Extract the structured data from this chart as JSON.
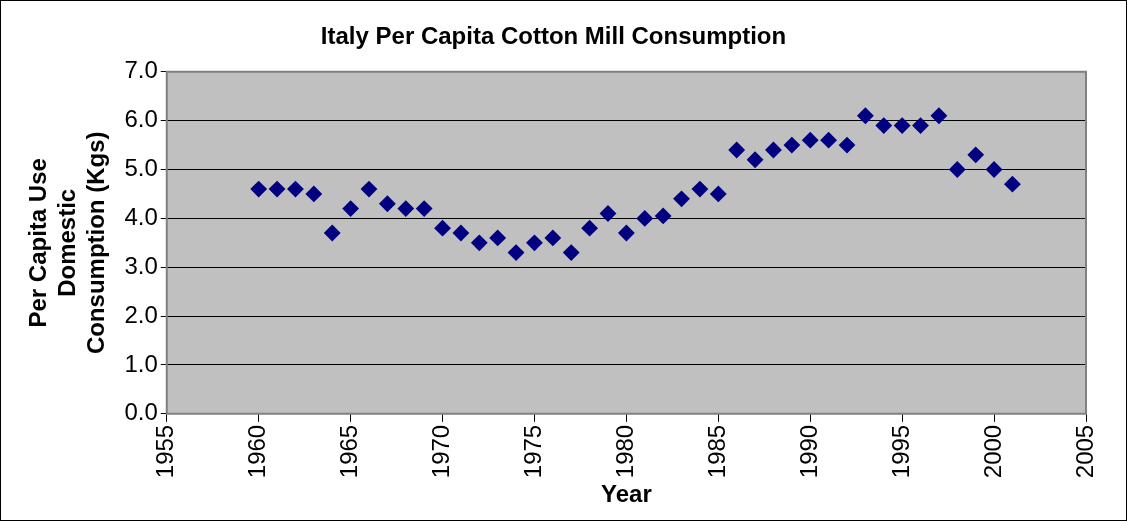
{
  "chart_data": {
    "type": "scatter",
    "title": "Italy Per Capita Cotton Mill Consumption",
    "xlabel": "Year",
    "ylabel": "Per Capita Use Domestic Consumption (Kgs)",
    "x": [
      1960,
      1961,
      1962,
      1963,
      1964,
      1965,
      1966,
      1967,
      1968,
      1969,
      1970,
      1971,
      1972,
      1973,
      1974,
      1975,
      1976,
      1977,
      1978,
      1979,
      1980,
      1981,
      1982,
      1983,
      1984,
      1985,
      1986,
      1987,
      1988,
      1989,
      1990,
      1991,
      1992,
      1993,
      1994,
      1995,
      1996,
      1997,
      1998,
      1999,
      2000,
      2001
    ],
    "values": [
      4.6,
      4.6,
      4.6,
      4.5,
      3.7,
      4.2,
      4.6,
      4.3,
      4.2,
      4.2,
      3.8,
      3.7,
      3.5,
      3.6,
      3.3,
      3.5,
      3.6,
      3.3,
      3.8,
      4.1,
      3.7,
      4.0,
      4.05,
      4.4,
      4.6,
      4.5,
      5.4,
      5.2,
      5.4,
      5.5,
      5.6,
      5.6,
      5.5,
      6.1,
      5.9,
      5.9,
      5.9,
      6.1,
      5.0,
      5.3,
      5.0,
      4.7
    ],
    "color": "#000080",
    "marker": "diamond",
    "xlim": [
      1955,
      2005
    ],
    "xticks": [
      1955,
      1960,
      1965,
      1970,
      1975,
      1980,
      1985,
      1990,
      1995,
      2000,
      2005
    ],
    "ylim": [
      0,
      7
    ],
    "yticks": [
      {
        "value": 0,
        "label": "0.0"
      },
      {
        "value": 1,
        "label": "1.0"
      },
      {
        "value": 2,
        "label": "2.0"
      },
      {
        "value": 3,
        "label": "3.0"
      },
      {
        "value": 4,
        "label": "4.0"
      },
      {
        "value": 5,
        "label": "5.0"
      },
      {
        "value": 6,
        "label": "6.0"
      },
      {
        "value": 7,
        "label": "7.0"
      }
    ],
    "grid": "y",
    "legend": false
  }
}
